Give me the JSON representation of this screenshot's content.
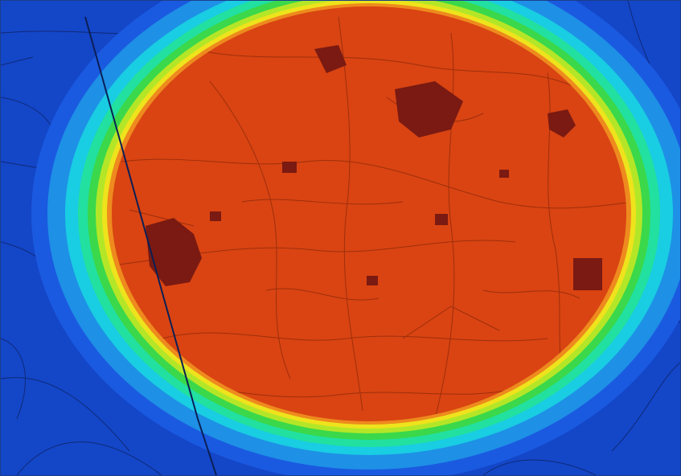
{
  "map": {
    "kind": "heat-overlay-on-topographic-map",
    "background_color": "#1446c8",
    "overlay_bands": [
      {
        "name": "outer",
        "color": "#1a5ae0"
      },
      {
        "name": "light-blue",
        "color": "#1e90e6"
      },
      {
        "name": "cyan",
        "color": "#19cde2"
      },
      {
        "name": "aqua-green",
        "color": "#22e0a0"
      },
      {
        "name": "green",
        "color": "#3ad84a"
      },
      {
        "name": "yellow-green",
        "color": "#b4e628"
      },
      {
        "name": "yellow",
        "color": "#eee31c"
      },
      {
        "name": "orange",
        "color": "#ee8a1e"
      },
      {
        "name": "core",
        "color": "#d94412"
      }
    ],
    "line_color": "#0b1f55",
    "core_line_color": "#6e1e08",
    "settlement_color": "#7a1a12"
  }
}
